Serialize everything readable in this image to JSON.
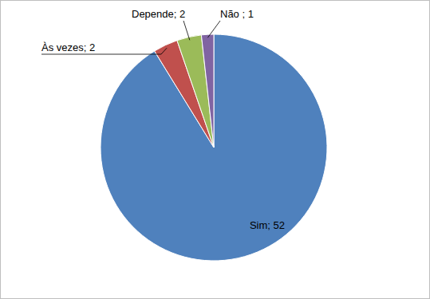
{
  "chart_data": {
    "type": "pie",
    "values": [
      52,
      2,
      2,
      1
    ],
    "value_labels": [
      "Sim; 52",
      "Às vezes; 2",
      "Depende; 2",
      "Não ; 1"
    ],
    "colors": [
      "#4f81bd",
      "#c0504d",
      "#9bbb59",
      "#8064a2"
    ],
    "data_labels": true
  }
}
